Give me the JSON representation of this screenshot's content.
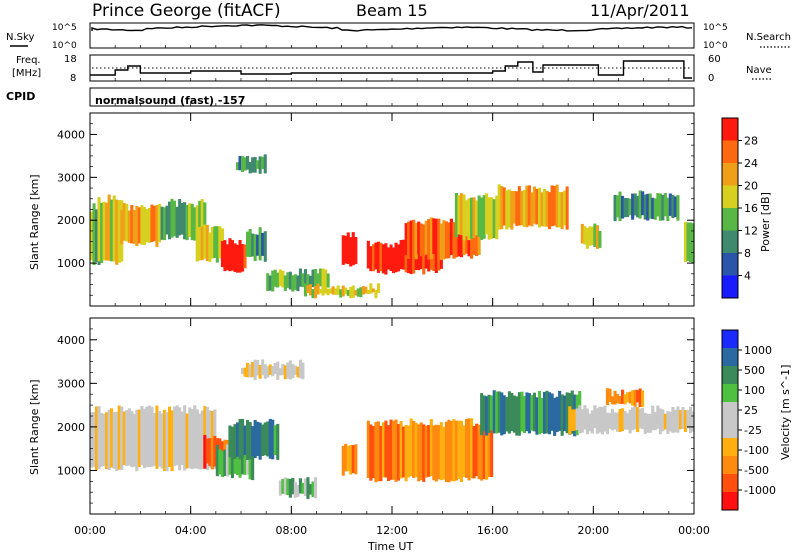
{
  "header": {
    "station": "Prince George (fitACF)",
    "beam": "Beam 15",
    "date": "11/Apr/2011"
  },
  "top_panels": {
    "nsky_label": "N.Sky",
    "nsearch_label": "N.Search",
    "freq_label_1": "Freq.",
    "freq_label_2": "[MHz]",
    "nave_label": "Nave",
    "cpid_label": "CPID",
    "cpid_text": "normalsound (fast) -157",
    "noise_ticks": [
      "10^5",
      "10^0"
    ],
    "freq_ticks": [
      "18",
      "8"
    ],
    "nave_ticks": [
      "60",
      "0"
    ]
  },
  "colors": {
    "power_scale": [
      "#1a1aff",
      "#2a55a8",
      "#3f8a6e",
      "#59b845",
      "#d8d020",
      "#f0a018",
      "#ff6a10",
      "#ff1a10"
    ],
    "velocity_scale": [
      "#ff1010",
      "#ff5010",
      "#ff8a10",
      "#ffb010",
      "#c8c8c8",
      "#c8c8c8",
      "#50c040",
      "#3a8a5a",
      "#2a6aa0",
      "#1a2aff"
    ]
  },
  "chart_data": [
    {
      "type": "heatmap",
      "name": "power",
      "ylabel": "Slant Range [km]",
      "colorbar_label": "Power [dB]",
      "colorbar_ticks": [
        "28",
        "24",
        "20",
        "16",
        "12",
        "8",
        "4"
      ],
      "colorbar_range": [
        0,
        32
      ],
      "y_ticks": [
        "4000",
        "3000",
        "2000",
        "1000"
      ],
      "ylim": [
        0,
        4500
      ],
      "xlim_hours": [
        0,
        24
      ],
      "blobs": [
        {
          "t0": 0.0,
          "t1": 0.4,
          "r0": 1000,
          "r1": 2300,
          "level": 3
        },
        {
          "t0": 0.3,
          "t1": 1.3,
          "r0": 1000,
          "r1": 2500,
          "level": 4
        },
        {
          "t0": 1.2,
          "t1": 2.8,
          "r0": 1450,
          "r1": 2300,
          "level": 5
        },
        {
          "t0": 2.8,
          "t1": 4.6,
          "r0": 1600,
          "r1": 2400,
          "level": 3
        },
        {
          "t0": 4.2,
          "t1": 5.3,
          "r0": 1050,
          "r1": 1800,
          "level": 4
        },
        {
          "t0": 5.2,
          "t1": 6.2,
          "r0": 850,
          "r1": 1500,
          "level": 7
        },
        {
          "t0": 5.8,
          "t1": 7.0,
          "r0": 3150,
          "r1": 3450,
          "level": 2
        },
        {
          "t0": 6.2,
          "t1": 7.0,
          "r0": 1100,
          "r1": 1750,
          "level": 2
        },
        {
          "t0": 7.0,
          "t1": 9.5,
          "r0": 400,
          "r1": 800,
          "level": 3
        },
        {
          "t0": 8.5,
          "t1": 11.5,
          "r0": 250,
          "r1": 450,
          "level": 4
        },
        {
          "t0": 10.0,
          "t1": 10.6,
          "r0": 950,
          "r1": 1700,
          "level": 7
        },
        {
          "t0": 11.0,
          "t1": 14.0,
          "r0": 800,
          "r1": 1450,
          "level": 7
        },
        {
          "t0": 12.5,
          "t1": 15.5,
          "r0": 1150,
          "r1": 2000,
          "level": 6
        },
        {
          "t0": 14.5,
          "t1": 16.2,
          "r0": 1600,
          "r1": 2550,
          "level": 4
        },
        {
          "t0": 16.2,
          "t1": 19.0,
          "r0": 1850,
          "r1": 2750,
          "level": 5
        },
        {
          "t0": 19.5,
          "t1": 20.3,
          "r0": 1400,
          "r1": 1850,
          "level": 4
        },
        {
          "t0": 20.8,
          "t1": 23.4,
          "r0": 2050,
          "r1": 2600,
          "level": 2
        },
        {
          "t0": 23.6,
          "t1": 24.0,
          "r0": 1000,
          "r1": 1900,
          "level": 3
        }
      ]
    },
    {
      "type": "heatmap",
      "name": "velocity",
      "ylabel": "Slant Range [km]",
      "colorbar_label": "Velocity [m s^-1]",
      "colorbar_ticks": [
        "1000",
        "500",
        "100",
        "25",
        "-25",
        "-100",
        "-500",
        "-1000"
      ],
      "y_ticks": [
        "4000",
        "3000",
        "2000",
        "1000"
      ],
      "ylim": [
        0,
        4500
      ],
      "xlim_hours": [
        0,
        24
      ],
      "x_ticks": [
        "00:00",
        "04:00",
        "08:00",
        "12:00",
        "16:00",
        "20:00",
        "00:00"
      ],
      "xlabel": "Time UT",
      "blobs": [
        {
          "t0": 0.0,
          "t1": 5.0,
          "r0": 1050,
          "r1": 2400,
          "level": 4
        },
        {
          "t0": 4.5,
          "t1": 5.5,
          "r0": 1100,
          "r1": 1750,
          "level": 1
        },
        {
          "t0": 5.0,
          "t1": 6.5,
          "r0": 850,
          "r1": 1500,
          "level": 6
        },
        {
          "t0": 5.5,
          "t1": 7.5,
          "r0": 1300,
          "r1": 2100,
          "level": 7
        },
        {
          "t0": 6.0,
          "t1": 8.5,
          "r0": 3150,
          "r1": 3450,
          "level": 4
        },
        {
          "t0": 7.5,
          "t1": 9.0,
          "r0": 400,
          "r1": 750,
          "level": 6
        },
        {
          "t0": 10.0,
          "t1": 10.6,
          "r0": 950,
          "r1": 1650,
          "level": 2
        },
        {
          "t0": 11.0,
          "t1": 16.0,
          "r0": 800,
          "r1": 2100,
          "level": 2
        },
        {
          "t0": 15.5,
          "t1": 19.5,
          "r0": 1850,
          "r1": 2750,
          "level": 7
        },
        {
          "t0": 19.0,
          "t1": 24.0,
          "r0": 1900,
          "r1": 2400,
          "level": 4
        },
        {
          "t0": 20.5,
          "t1": 22.0,
          "r0": 2500,
          "r1": 2800,
          "level": 2
        }
      ]
    }
  ]
}
